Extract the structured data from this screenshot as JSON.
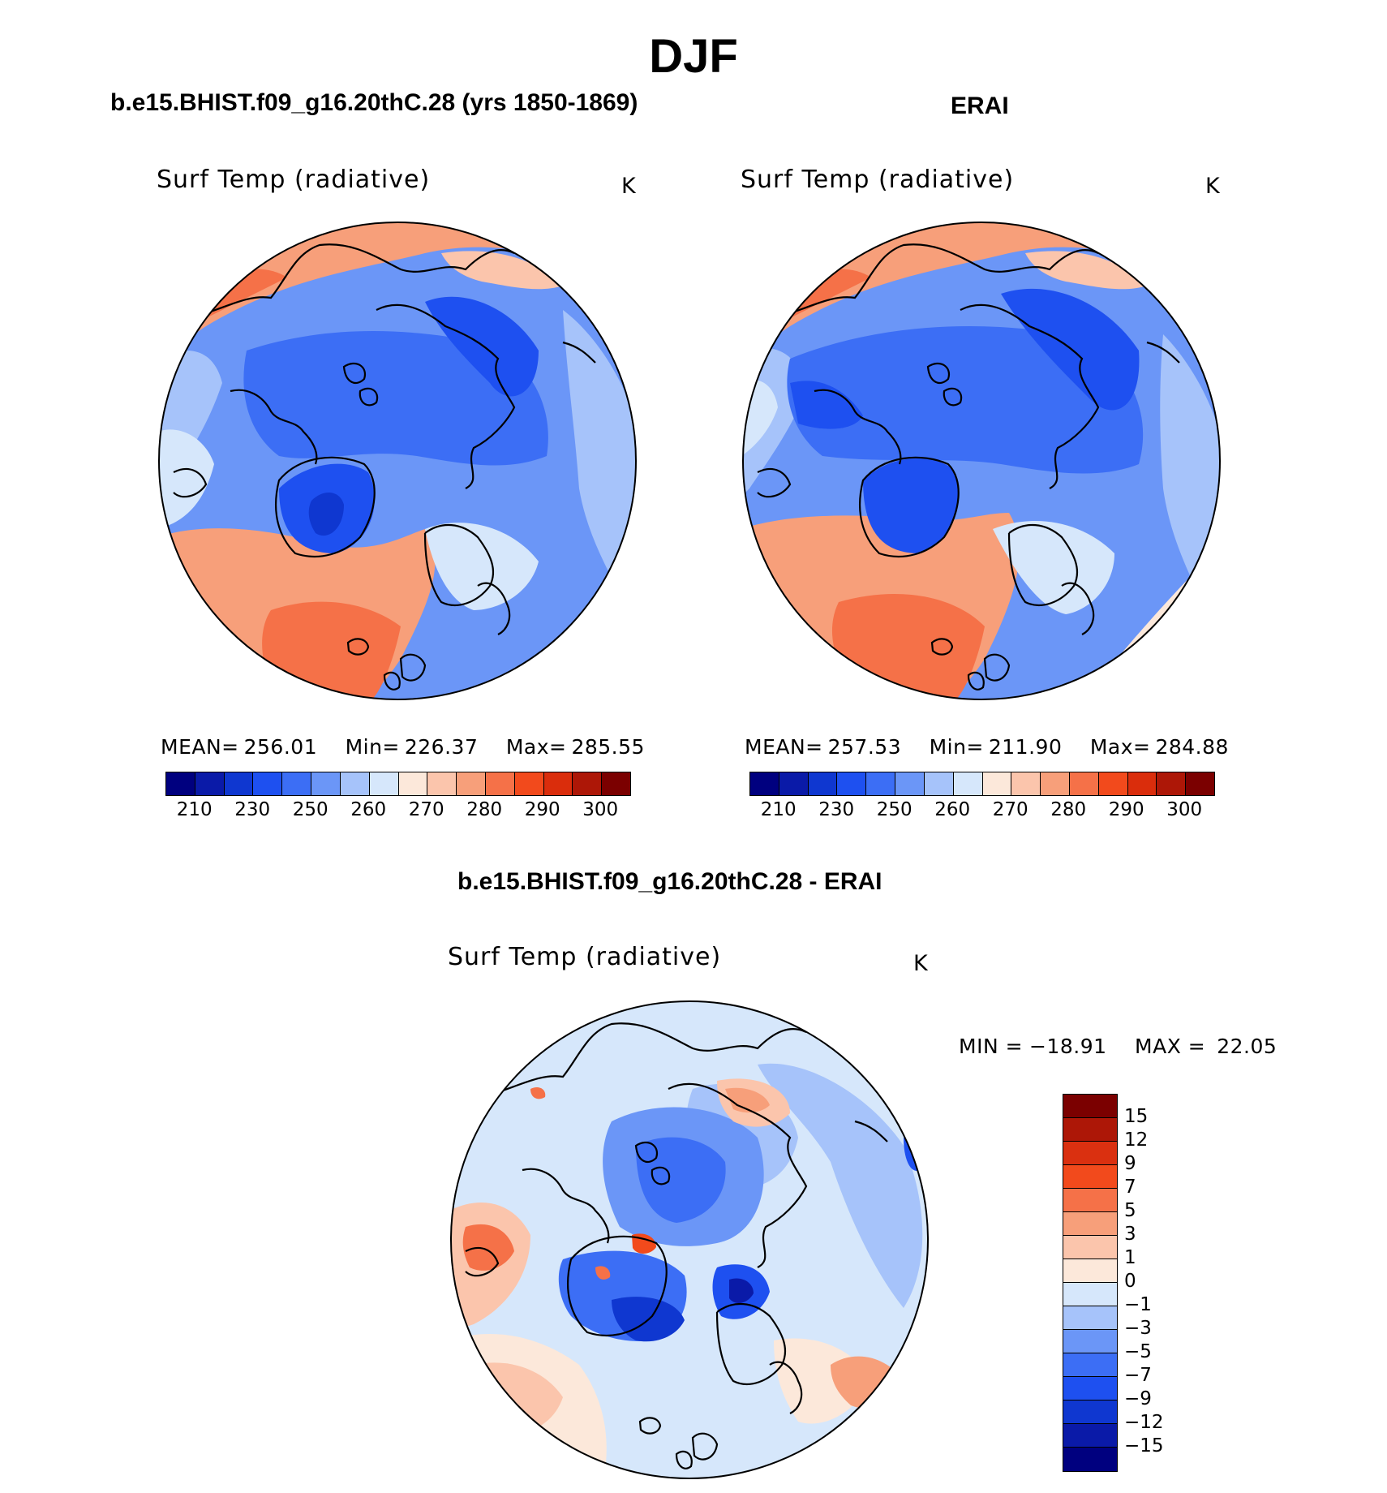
{
  "figure": {
    "season_title": "DJF",
    "panels": [
      {
        "id": "model",
        "heading": "b.e15.BHIST.f09_g16.20thC.28 (yrs 1850-1869)",
        "variable": "Surf Temp (radiative)",
        "units": "K",
        "mean_label": "MEAN=",
        "mean_value": "256.01",
        "min_label": "Min=",
        "min_value": "226.37",
        "max_label": "Max=",
        "max_value": "285.55"
      },
      {
        "id": "obs",
        "heading": "ERAI",
        "variable": "Surf Temp (radiative)",
        "units": "K",
        "mean_label": "MEAN=",
        "mean_value": "257.53",
        "min_label": "Min=",
        "min_value": "211.90",
        "max_label": "Max=",
        "max_value": "284.88"
      }
    ],
    "difference": {
      "heading": "b.e15.BHIST.f09_g16.20thC.28 - ERAI",
      "variable": "Surf Temp (radiative)",
      "units": "K",
      "min_label": "MIN =",
      "min_value": "−18.91",
      "max_label": "MAX =",
      "max_value": "22.05"
    }
  },
  "colorbar_abs": {
    "colors": [
      "#00007f",
      "#0a1aa8",
      "#0f37d0",
      "#1e50f0",
      "#3c6ef5",
      "#6b96f7",
      "#a6c3fa",
      "#d6e7fb",
      "#fce8da",
      "#fbc5ac",
      "#f79f7a",
      "#f57148",
      "#f24a1c",
      "#da2d0c",
      "#ad1707",
      "#7b0000"
    ],
    "tick_labels": [
      "210",
      "230",
      "250",
      "260",
      "270",
      "280",
      "290",
      "300"
    ]
  },
  "colorbar_diff": {
    "colors_top_to_bottom": [
      "#7b0000",
      "#ad1707",
      "#da3010",
      "#f24a1c",
      "#f57148",
      "#f79f7a",
      "#fbc5ac",
      "#fce8da",
      "#d6e7fb",
      "#a6c3fa",
      "#6b96f7",
      "#3c6ef5",
      "#1e50f0",
      "#0f37d0",
      "#0a1aa8",
      "#00007f"
    ],
    "labels_top_to_bottom": [
      "15",
      "12",
      "9",
      "7",
      "5",
      "3",
      "1",
      "0",
      "−1",
      "−3",
      "−5",
      "−7",
      "−9",
      "−12",
      "−15"
    ]
  }
}
